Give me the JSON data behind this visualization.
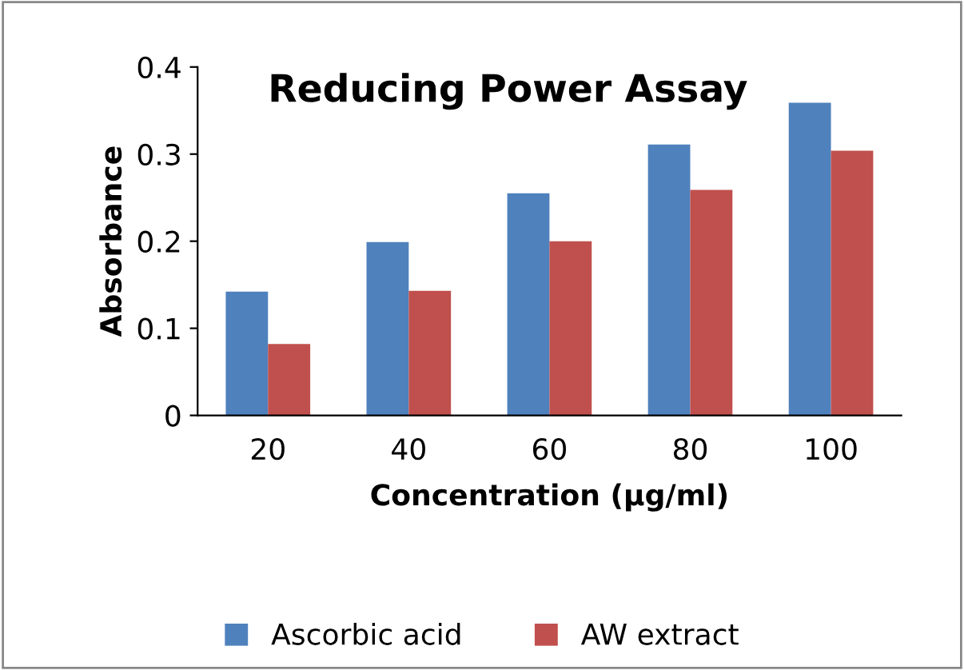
{
  "chart_data": {
    "type": "bar",
    "title": "Reducing Power Assay",
    "xlabel": "Concentration (µg/ml)",
    "ylabel": "Absorbance",
    "categories": [
      "20",
      "40",
      "60",
      "80",
      "100"
    ],
    "series": [
      {
        "name": "Ascorbic acid",
        "color": "#4f81bd",
        "values": [
          0.142,
          0.199,
          0.255,
          0.311,
          0.359
        ]
      },
      {
        "name": "AW extract",
        "color": "#c0504d",
        "values": [
          0.082,
          0.143,
          0.2,
          0.259,
          0.304
        ]
      }
    ],
    "ylim": [
      0,
      0.4
    ],
    "yticks": [
      0,
      0.1,
      0.2,
      0.3,
      0.4
    ],
    "grid": false,
    "legend": "bottom"
  }
}
